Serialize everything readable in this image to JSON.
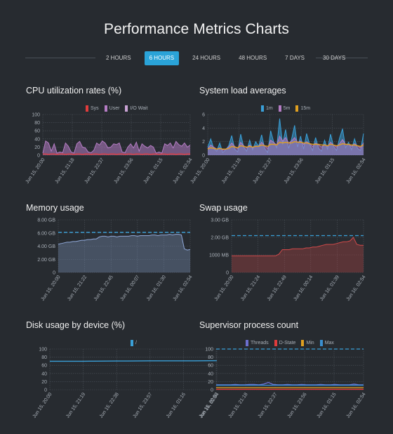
{
  "page": {
    "title": "Performance Metrics Charts"
  },
  "time_ranges": {
    "options": [
      "2 HOURS",
      "6 HOURS",
      "24 HOURS",
      "48 HOURS",
      "7 DAYS",
      "30 DAYS"
    ],
    "selected": "6 HOURS"
  },
  "colors": {
    "background": "#272b30",
    "accent": "#2aa3d8",
    "grid": "#4b525a",
    "text_muted": "#a9b0b8"
  },
  "panels": {
    "cpu": {
      "title": "CPU utilization rates (%)"
    },
    "load": {
      "title": "System load averages"
    },
    "memory": {
      "title": "Memory usage"
    },
    "swap": {
      "title": "Swap usage"
    },
    "disk": {
      "title": "Disk usage by device (%)"
    },
    "process": {
      "title": "Supervisor process count"
    }
  },
  "chart_data": [
    {
      "id": "cpu",
      "type": "area",
      "title": "CPU utilization rates (%)",
      "y_ticks": [
        "100",
        "80",
        "60",
        "40",
        "20",
        "0"
      ],
      "ylim": [
        0,
        100
      ],
      "x_tick_labels": [
        "Jun 15, 20:00",
        "Jun 15, 21:18",
        "Jun 15, 22:37",
        "Jun 15, 23:56",
        "Jun 16, 01:15",
        "Jun 16, 02:54"
      ],
      "legend": [
        {
          "name": "Sys",
          "color": "#e03c3c"
        },
        {
          "name": "User",
          "color": "#b57cc4"
        },
        {
          "name": "I/O Wait",
          "color": "#c9a2d4"
        }
      ],
      "series": [
        {
          "name": "User",
          "color": "#b57cc4",
          "kind": "area",
          "values": [
            5,
            35,
            30,
            10,
            28,
            5,
            8,
            6,
            30,
            22,
            8,
            5,
            28,
            34,
            20,
            18,
            8,
            6,
            12,
            30,
            25,
            35,
            30,
            18,
            20,
            28,
            26,
            30,
            8,
            6,
            20,
            28,
            18,
            32,
            10,
            28,
            22,
            18,
            24,
            20,
            5,
            8,
            5,
            28,
            24,
            30,
            18,
            34,
            26,
            22,
            30,
            20,
            25
          ]
        },
        {
          "name": "Sys",
          "color": "#e03c3c",
          "kind": "line",
          "values": [
            3,
            3,
            2,
            3,
            3,
            2,
            3,
            3,
            2,
            3,
            3,
            2,
            3,
            3,
            2,
            3,
            3,
            2,
            3,
            3,
            2,
            3,
            3,
            2,
            3,
            3,
            2,
            3,
            3,
            2,
            3,
            3,
            2,
            3,
            3,
            2,
            3,
            3,
            2,
            3,
            3,
            2,
            3,
            3,
            2,
            3,
            3,
            2,
            3,
            3,
            2,
            3,
            3
          ]
        }
      ]
    },
    {
      "id": "load",
      "type": "area",
      "title": "System load averages",
      "y_ticks": [
        "6",
        "4",
        "2",
        "0"
      ],
      "ylim": [
        0,
        6
      ],
      "x_tick_labels": [
        "Jun 15, 20:00",
        "Jun 15, 21:18",
        "Jun 15, 22:37",
        "Jun 15, 23:56",
        "Jun 16, 01:15",
        "Jun 16, 02:54"
      ],
      "legend": [
        {
          "name": "1m",
          "color": "#3aa0d8"
        },
        {
          "name": "5m",
          "color": "#b57cc4"
        },
        {
          "name": "15m",
          "color": "#e0a020"
        }
      ],
      "series": [
        {
          "name": "1m",
          "color": "#3aa0d8",
          "kind": "area",
          "values": [
            1.2,
            2.4,
            1.0,
            0.6,
            1.8,
            0.4,
            0.8,
            1.4,
            2.9,
            0.9,
            0.5,
            3.1,
            1.2,
            0.6,
            2.2,
            0.8,
            2.0,
            1.3,
            3.0,
            1.0,
            0.4,
            3.6,
            2.0,
            1.1,
            5.4,
            1.6,
            3.8,
            1.0,
            2.4,
            4.4,
            1.2,
            2.8,
            0.9,
            3.2,
            1.6,
            0.7,
            2.6,
            1.0,
            0.6,
            2.2,
            0.9,
            3.1,
            1.3,
            0.7,
            2.5,
            3.9,
            1.1,
            1.9,
            0.8,
            2.4,
            1.0,
            0.7,
            3.2
          ]
        },
        {
          "name": "5m",
          "color": "#b57cc4",
          "kind": "area",
          "values": [
            1.0,
            1.5,
            1.2,
            0.9,
            1.1,
            0.8,
            0.9,
            1.2,
            1.8,
            1.3,
            1.0,
            1.9,
            1.4,
            1.1,
            1.5,
            1.1,
            1.4,
            1.3,
            1.9,
            1.4,
            1.0,
            2.2,
            1.9,
            1.5,
            2.8,
            2.1,
            2.6,
            1.8,
            2.1,
            2.6,
            1.9,
            2.1,
            1.6,
            2.0,
            1.7,
            1.3,
            1.8,
            1.5,
            1.2,
            1.6,
            1.3,
            1.9,
            1.5,
            1.2,
            1.7,
            2.3,
            1.6,
            1.6,
            1.3,
            1.7,
            1.4,
            1.1,
            1.8
          ]
        },
        {
          "name": "15m",
          "color": "#e0a020",
          "kind": "line",
          "values": [
            0.9,
            1.1,
            1.0,
            0.9,
            1.0,
            0.9,
            0.9,
            1.0,
            1.3,
            1.2,
            1.1,
            1.4,
            1.3,
            1.2,
            1.3,
            1.2,
            1.3,
            1.3,
            1.5,
            1.4,
            1.3,
            1.6,
            1.6,
            1.5,
            1.9,
            1.8,
            1.9,
            1.8,
            1.8,
            2.0,
            1.9,
            1.9,
            1.8,
            1.8,
            1.7,
            1.6,
            1.6,
            1.6,
            1.5,
            1.5,
            1.4,
            1.6,
            1.5,
            1.4,
            1.5,
            1.7,
            1.6,
            1.6,
            1.5,
            1.5,
            1.4,
            1.3,
            1.5
          ]
        }
      ]
    },
    {
      "id": "memory",
      "type": "area",
      "title": "Memory usage",
      "y_ticks": [
        "8.00 GB",
        "6.00 GB",
        "4.00 GB",
        "2.00 GB",
        "0"
      ],
      "ylim": [
        0,
        8
      ],
      "x_tick_labels": [
        "Jun 15, 20:00",
        "Jun 15, 21:22",
        "Jun 15, 22:45",
        "Jun 16, 00:07",
        "Jun 16, 01:30",
        "Jun 16, 02:54"
      ],
      "reference_line": 6.1,
      "series": [
        {
          "name": "Used",
          "color": "#8fa8d8",
          "kind": "area",
          "values": [
            4.3,
            4.4,
            4.5,
            4.6,
            4.6,
            4.7,
            4.7,
            4.8,
            4.9,
            4.9,
            5.0,
            5.0,
            5.1,
            5.1,
            5.4,
            5.5,
            5.5,
            5.4,
            5.5,
            5.5,
            5.4,
            5.5,
            5.5,
            5.5,
            5.5,
            5.6,
            5.6,
            5.5,
            5.6,
            5.6,
            5.6,
            5.6,
            5.7,
            5.7,
            5.6,
            5.7,
            5.7,
            5.7,
            5.8,
            5.7,
            5.8,
            5.8,
            5.7,
            3.6,
            3.4,
            3.5
          ]
        }
      ]
    },
    {
      "id": "swap",
      "type": "area",
      "title": "Swap usage",
      "y_ticks": [
        "3.00 GB",
        "2.00 GB",
        "1000 MB",
        "0"
      ],
      "ylim": [
        0,
        3
      ],
      "x_tick_labels": [
        "Jun 15, 20:00",
        "Jun 15, 21:24",
        "Jun 15, 22:49",
        "Jun 16, 00:14",
        "Jun 16, 01:39",
        "Jun 16, 02:54"
      ],
      "reference_line": 2.1,
      "series": [
        {
          "name": "Used",
          "color": "#d24a4a",
          "kind": "area",
          "values": [
            0.95,
            0.95,
            0.95,
            0.95,
            0.95,
            0.95,
            0.95,
            0.95,
            0.95,
            0.95,
            0.95,
            0.95,
            0.95,
            0.95,
            1.05,
            1.3,
            1.3,
            1.3,
            1.35,
            1.35,
            1.35,
            1.35,
            1.4,
            1.4,
            1.45,
            1.45,
            1.5,
            1.55,
            1.6,
            1.6,
            1.6,
            1.65,
            1.7,
            1.75,
            1.75,
            1.8,
            2.0,
            1.6,
            1.55,
            1.55
          ]
        }
      ]
    },
    {
      "id": "disk",
      "type": "line",
      "title": "Disk usage by device (%)",
      "y_ticks": [
        "100",
        "80",
        "60",
        "40",
        "20",
        "0"
      ],
      "ylim": [
        0,
        100
      ],
      "x_tick_labels": [
        "Jun 15, 20:00",
        "Jun 15, 21:19",
        "Jun 15, 22:38",
        "Jun 15, 23:57",
        "Jun 16, 01:16",
        "Jun 16, 02:54"
      ],
      "legend": [
        {
          "name": "/",
          "color": "#3aa0d8"
        }
      ],
      "series": [
        {
          "name": "/",
          "color": "#3aa0d8",
          "kind": "line",
          "values": [
            70,
            70,
            70,
            70,
            70.2,
            70.3,
            70.5,
            70.6,
            70.8,
            71,
            71,
            71,
            71,
            71,
            71.2,
            71.3
          ]
        }
      ]
    },
    {
      "id": "process",
      "type": "line",
      "title": "Supervisor process count",
      "y_ticks": [
        "100",
        "80",
        "60",
        "40",
        "20",
        "0"
      ],
      "ylim": [
        0,
        100
      ],
      "x_tick_labels": [
        "Jun 15, 20:00",
        "Jun 15, 21:18",
        "Jun 15, 22:37",
        "Jun 15, 23:56",
        "Jun 16, 01:15",
        "Jun 16, 02:54"
      ],
      "legend": [
        {
          "name": "Threads",
          "color": "#6b6fcf"
        },
        {
          "name": "D-State",
          "color": "#e03c3c"
        },
        {
          "name": "Min",
          "color": "#e0a020"
        },
        {
          "name": "Max",
          "color": "#3a8fd0"
        }
      ],
      "reference_line": 100,
      "series": [
        {
          "name": "Threads",
          "color": "#6b6fcf",
          "kind": "line",
          "values": [
            12,
            12,
            12,
            12,
            13,
            12,
            12,
            13,
            13,
            12,
            14,
            18,
            13,
            12,
            12,
            13,
            12,
            12,
            13,
            12,
            12,
            12,
            13,
            12,
            12,
            13,
            12,
            12,
            12,
            14,
            12,
            12
          ]
        },
        {
          "name": "Max",
          "color": "#3a8fd0",
          "kind": "line",
          "values": [
            11,
            11,
            11,
            11,
            11,
            11,
            11,
            11,
            11,
            11,
            11,
            11,
            11,
            11,
            11,
            11,
            11,
            11,
            11,
            11,
            11,
            11,
            11,
            11,
            11,
            11,
            11,
            11,
            11,
            11,
            11,
            11
          ]
        },
        {
          "name": "Min",
          "color": "#e0a020",
          "kind": "line",
          "values": [
            5,
            5,
            5,
            5,
            5,
            5,
            5,
            5,
            5,
            5,
            5,
            5,
            5,
            5,
            5,
            5,
            5,
            5,
            5,
            5,
            5,
            5,
            5,
            5,
            5,
            5,
            5,
            5,
            5,
            5,
            5,
            5
          ]
        },
        {
          "name": "D-State",
          "color": "#e03c3c",
          "kind": "line",
          "values": [
            1,
            1,
            1,
            1,
            1,
            1,
            1,
            1,
            1,
            1,
            1,
            1,
            1,
            1,
            1,
            1,
            1,
            1,
            1,
            1,
            1,
            1,
            1,
            1,
            1,
            1,
            1,
            1,
            1,
            1,
            1,
            1
          ]
        }
      ]
    }
  ]
}
